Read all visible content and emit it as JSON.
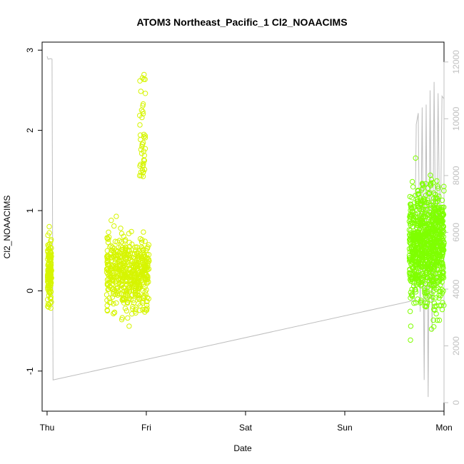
{
  "chart_data": {
    "type": "scatter",
    "title": "ATOM3 Northeast_Pacific_1 Cl2_NOAACIMS",
    "xlabel": "Date",
    "ylabel": "Cl2_NOAACIMS",
    "x_type": "date",
    "x_ticks": [
      "Thu",
      "Fri",
      "Sat",
      "Sun",
      "Mon"
    ],
    "xlim_days": [
      -0.05,
      4.0
    ],
    "ylim": [
      -1.5,
      3.1
    ],
    "y_ticks": [
      -1,
      0,
      1,
      2,
      3
    ],
    "y2_ticks": [
      0,
      2000,
      4000,
      6000,
      8000,
      10000,
      12000
    ],
    "y2lim": [
      -300,
      12700
    ],
    "grid": false,
    "colors": {
      "flight1": "#d6f500",
      "flight2": "#7fff00",
      "secondary": "#bebebe"
    },
    "series": [
      {
        "points_style": "open-circle",
        "segments": [
          {
            "x_start": 0.005,
            "x_end": 0.045,
            "y_center": 0.25,
            "y_spread": 0.22,
            "y_min": -0.25,
            "y_max": 0.98,
            "n": 140
          },
          {
            "x_start": 0.6,
            "x_end": 1.03,
            "y_center": 0.22,
            "y_spread": 0.22,
            "y_min": -0.78,
            "y_max": 0.95,
            "n": 520
          },
          {
            "x_start": 0.93,
            "x_end": 0.99,
            "y_center": 1.9,
            "y_spread": 0.5,
            "y_min": 1.4,
            "y_max": 2.75,
            "n": 45
          }
        ]
      },
      {
        "points_style": "open-circle",
        "segments": [
          {
            "x_start": 3.65,
            "x_end": 4.0,
            "y_center": 0.55,
            "y_spread": 0.35,
            "y_min": -1.3,
            "y_max": 3.05,
            "n": 900
          }
        ]
      },
      {
        "style": "line",
        "axis": "secondary",
        "x": [
          0.0,
          0.005,
          0.01,
          0.04,
          0.05,
          0.06,
          3.7,
          3.72,
          3.74,
          3.76,
          3.78,
          3.8,
          3.82,
          3.84,
          3.86,
          3.88,
          3.9,
          3.92,
          3.94,
          3.96,
          3.98,
          4.0
        ],
        "values": [
          12200,
          12150,
          12100,
          12120,
          12100,
          800,
          3600,
          9800,
          10200,
          3200,
          10400,
          800,
          10500,
          200,
          11000,
          2500,
          11300,
          4000,
          10900,
          5000,
          10800,
          10700
        ]
      }
    ]
  }
}
